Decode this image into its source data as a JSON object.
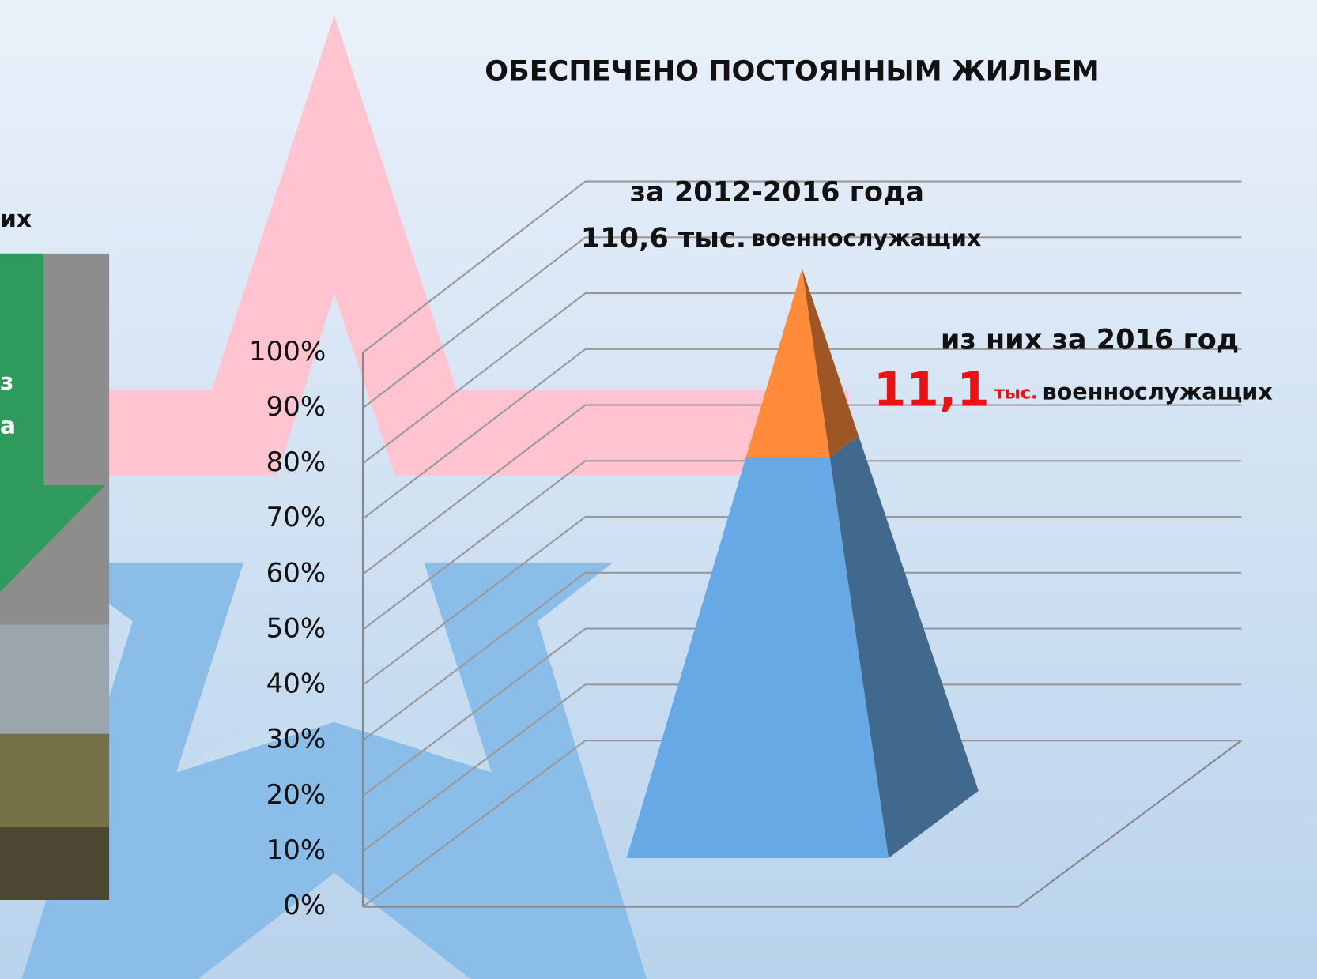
{
  "chart_data": {
    "type": "pyramid",
    "title": "ОБЕСПЕЧЕНО ПОСТОЯННЫМ ЖИЛЬЕМ",
    "annotations": [
      "за 2012-2016 года",
      "110,6 тыс.",
      "военнослужащих",
      "из них за 2016 год",
      "11,1",
      "тыс.",
      "военнослужащих"
    ],
    "categories": [
      null
    ],
    "series": [
      {
        "color": "#67a9e4",
        "values": [
          68
        ]
      },
      {
        "color": "#ff8a3a",
        "values": [
          32
        ]
      }
    ],
    "ylim": [
      0,
      100
    ],
    "yticks": [
      {
        "value": 0,
        "label": "0%"
      },
      {
        "value": 10,
        "label": "10%"
      },
      {
        "value": 20,
        "label": "20%"
      },
      {
        "value": 30,
        "label": "30%"
      },
      {
        "value": 40,
        "label": "40%"
      },
      {
        "value": 50,
        "label": "50%"
      },
      {
        "value": 60,
        "label": "60%"
      },
      {
        "value": 70,
        "label": "70%"
      },
      {
        "value": 80,
        "label": "80%"
      },
      {
        "value": 90,
        "label": "90%"
      },
      {
        "value": 100,
        "label": "100%"
      }
    ],
    "grid": true
  },
  "side_panel": {
    "texts": [
      "их",
      "з",
      "а"
    ]
  }
}
